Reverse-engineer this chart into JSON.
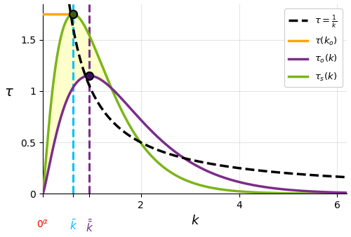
{
  "xlabel": "k",
  "ylabel": "$\\tau$",
  "xlim": [
    0,
    6.2
  ],
  "ylim": [
    0,
    1.85
  ],
  "k_bar": 0.62,
  "k_dbar": 0.95,
  "color_tau_inv": "#000000",
  "color_tau_ko": "#FFA500",
  "color_tau_o": "#7B2D8B",
  "color_tau_s": "#7CB518",
  "color_fill": "#FFFFCC",
  "color_vline_k_bar": "#00BFFF",
  "color_vline_k_dbar": "#7B2D8B",
  "tau_s_peak": 1.75,
  "tau_o_peak": 1.15,
  "yticks": [
    0,
    0.5,
    1.0,
    1.5
  ],
  "bg_color": "#FFFFFF"
}
